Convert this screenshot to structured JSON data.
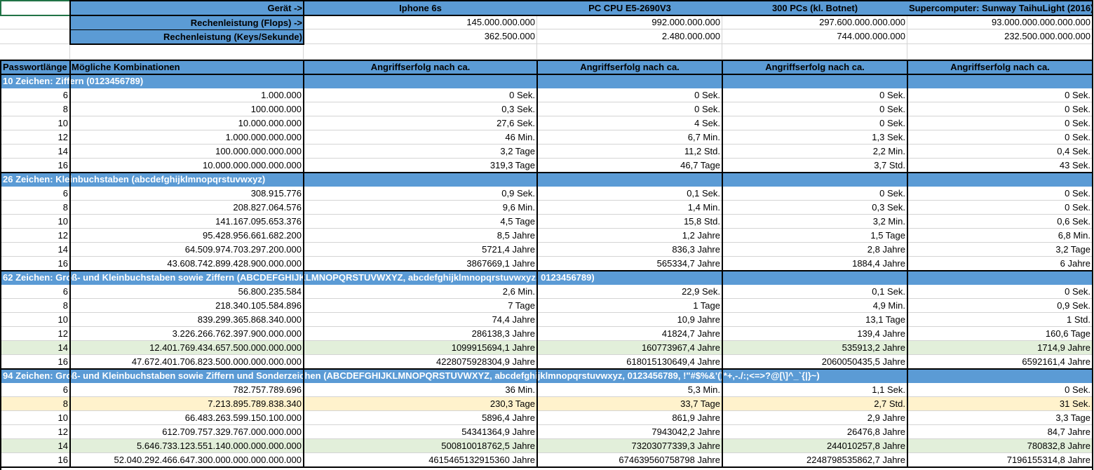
{
  "top": {
    "device_label": "Gerät ->",
    "flops_label": "Rechenleistung (Flops) ->",
    "keys_label": "Rechenleistung (Keys/Sekunde)",
    "devices": [
      "Iphone 6s",
      "PC CPU E5-2690V3",
      "300 PCs (kl. Botnet)",
      "Supercomputer: Sunway TaihuLight (2016)"
    ],
    "flops": [
      "145.000.000.000",
      "992.000.000.000",
      "297.600.000.000.000",
      "93.000.000.000.000.000"
    ],
    "keys": [
      "362.500.000",
      "2.480.000.000",
      "744.000.000.000",
      "232.500.000.000.000"
    ]
  },
  "header": {
    "col_length": "Passwortlänge",
    "col_combos": "Mögliche Kombinationen",
    "col_attack": "Angriffserfolg nach ca."
  },
  "sections": [
    {
      "title": "10 Zeichen: Ziffern (0123456789)",
      "rows": [
        {
          "len": "6",
          "combos": "1.000.000",
          "v": [
            "0 Sek.",
            "0 Sek.",
            "0 Sek.",
            "0 Sek."
          ],
          "hl": ""
        },
        {
          "len": "8",
          "combos": "100.000.000",
          "v": [
            "0,3 Sek.",
            "0 Sek.",
            "0 Sek.",
            "0 Sek."
          ],
          "hl": ""
        },
        {
          "len": "10",
          "combos": "10.000.000.000",
          "v": [
            "27,6 Sek.",
            "4 Sek.",
            "0 Sek.",
            "0 Sek."
          ],
          "hl": ""
        },
        {
          "len": "12",
          "combos": "1.000.000.000.000",
          "v": [
            "46 Min.",
            "6,7 Min.",
            "1,3 Sek.",
            "0 Sek."
          ],
          "hl": ""
        },
        {
          "len": "14",
          "combos": "100.000.000.000.000",
          "v": [
            "3,2 Tage",
            "11,2 Std.",
            "2,2 Min.",
            "0,4 Sek."
          ],
          "hl": ""
        },
        {
          "len": "16",
          "combos": "10.000.000.000.000.000",
          "v": [
            "319,3 Tage",
            "46,7 Tage",
            "3,7 Std.",
            "43 Sek."
          ],
          "hl": ""
        }
      ]
    },
    {
      "title": "26 Zeichen: Kleinbuchstaben (abcdefghijklmnopqrstuvwxyz)",
      "rows": [
        {
          "len": "6",
          "combos": "308.915.776",
          "v": [
            "0,9 Sek.",
            "0,1 Sek.",
            "0 Sek.",
            "0 Sek."
          ],
          "hl": ""
        },
        {
          "len": "8",
          "combos": "208.827.064.576",
          "v": [
            "9,6 Min.",
            "1,4 Min.",
            "0,3 Sek.",
            "0 Sek."
          ],
          "hl": ""
        },
        {
          "len": "10",
          "combos": "141.167.095.653.376",
          "v": [
            "4,5 Tage",
            "15,8 Std.",
            "3,2 Min.",
            "0,6 Sek."
          ],
          "hl": ""
        },
        {
          "len": "12",
          "combos": "95.428.956.661.682.200",
          "v": [
            "8,5 Jahre",
            "1,2 Jahre",
            "1,5 Tage",
            "6,8 Min."
          ],
          "hl": ""
        },
        {
          "len": "14",
          "combos": "64.509.974.703.297.200.000",
          "v": [
            "5721,4 Jahre",
            "836,3 Jahre",
            "2,8 Jahre",
            "3,2 Tage"
          ],
          "hl": ""
        },
        {
          "len": "16",
          "combos": "43.608.742.899.428.900.000.000",
          "v": [
            "3867669,1 Jahre",
            "565334,7 Jahre",
            "1884,4 Jahre",
            "6 Jahre"
          ],
          "hl": ""
        }
      ]
    },
    {
      "title": "62 Zeichen: Groß- und Kleinbuchstaben sowie Ziffern (ABCDEFGHIJKLMNOPQRSTUVWXYZ, abcdefghijklmnopqrstuvwxyz, 0123456789)",
      "rows": [
        {
          "len": "6",
          "combos": "56.800.235.584",
          "v": [
            "2,6 Min.",
            "22,9 Sek.",
            "0,1 Sek.",
            "0 Sek."
          ],
          "hl": ""
        },
        {
          "len": "8",
          "combos": "218.340.105.584.896",
          "v": [
            "7 Tage",
            "1 Tage",
            "4,9 Min.",
            "0,9 Sek."
          ],
          "hl": ""
        },
        {
          "len": "10",
          "combos": "839.299.365.868.340.000",
          "v": [
            "74,4 Jahre",
            "10,9 Jahre",
            "13,1 Tage",
            "1 Std."
          ],
          "hl": ""
        },
        {
          "len": "12",
          "combos": "3.226.266.762.397.900.000.000",
          "v": [
            "286138,3 Jahre",
            "41824,7 Jahre",
            "139,4 Jahre",
            "160,6 Tage"
          ],
          "hl": ""
        },
        {
          "len": "14",
          "combos": "12.401.769.434.657.500.000.000.000",
          "v": [
            "1099915694,1 Jahre",
            "160773967,4 Jahre",
            "535913,2 Jahre",
            "1714,9 Jahre"
          ],
          "hl": "green"
        },
        {
          "len": "16",
          "combos": "47.672.401.706.823.500.000.000.000.000",
          "v": [
            "4228075928304,9 Jahre",
            "618015130649,4 Jahre",
            "2060050435,5 Jahre",
            "6592161,4 Jahre"
          ],
          "hl": ""
        }
      ]
    },
    {
      "title": "94 Zeichen: Groß- und Kleinbuchstaben sowie Ziffern und Sonderzeichen (ABCDEFGHIJKLMNOPQRSTUVWXYZ, abcdefghijklmnopqrstuvwxyz, 0123456789, !\"#$%&'()*+,-./:;<=>?@[\\]^_`{|}~)",
      "rows": [
        {
          "len": "6",
          "combos": "782.757.789.696",
          "v": [
            "36 Min.",
            "5,3 Min.",
            "1,1 Sek.",
            "0 Sek."
          ],
          "hl": ""
        },
        {
          "len": "8",
          "combos": "7.213.895.789.838.340",
          "v": [
            "230,3 Tage",
            "33,7 Tage",
            "2,7 Std.",
            "31 Sek."
          ],
          "hl": "yellow"
        },
        {
          "len": "10",
          "combos": "66.483.263.599.150.100.000",
          "v": [
            "5896,4 Jahre",
            "861,9 Jahre",
            "2,9 Jahre",
            "3,3 Tage"
          ],
          "hl": ""
        },
        {
          "len": "12",
          "combos": "612.709.757.329.767.000.000.000",
          "v": [
            "54341364,9 Jahre",
            "7943042,2 Jahre",
            "26476,8 Jahre",
            "84,7 Jahre"
          ],
          "hl": ""
        },
        {
          "len": "14",
          "combos": "5.646.733.123.551.140.000.000.000.000",
          "v": [
            "500810018762,5 Jahre",
            "73203077339,3 Jahre",
            "244010257,8 Jahre",
            "780832,8 Jahre"
          ],
          "hl": "green"
        },
        {
          "len": "16",
          "combos": "52.040.292.466.647.300.000.000.000.000.000",
          "v": [
            "4615465132915360 Jahre",
            "674639560758798 Jahre",
            "2248798535862,7 Jahre",
            "7196155314,8 Jahre"
          ],
          "hl": ""
        }
      ]
    }
  ]
}
